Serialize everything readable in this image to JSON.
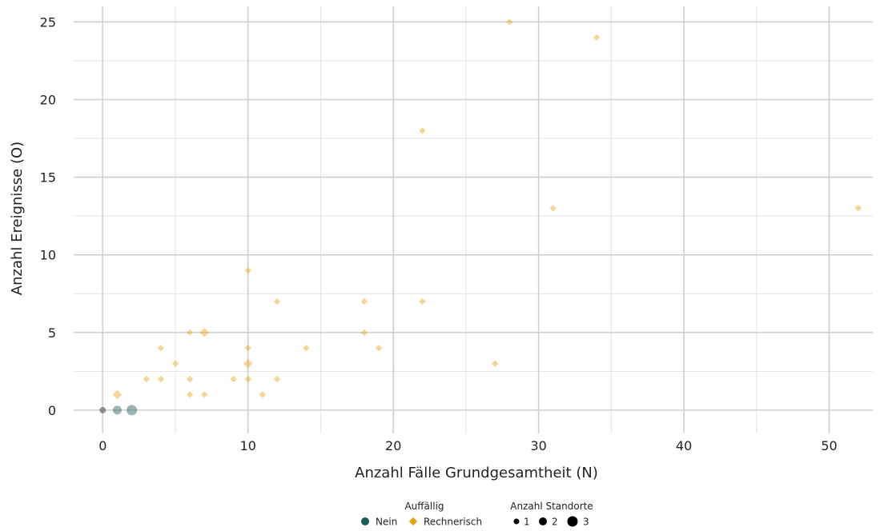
{
  "chart_data": {
    "type": "scatter",
    "title": "",
    "xlabel": "Anzahl Fälle Grundgesamtheit (N)",
    "ylabel": "Anzahl Ereignisse (O)",
    "xlim": [
      -2,
      53
    ],
    "ylim": [
      -1.5,
      26
    ],
    "xticks": [
      0,
      10,
      20,
      30,
      40,
      50
    ],
    "xtick_labels": [
      "0",
      "10",
      "20",
      "30",
      "40",
      "50"
    ],
    "x_minor_gridlines": [
      5,
      15,
      25,
      35,
      45
    ],
    "yticks": [
      0,
      5,
      10,
      15,
      20,
      25
    ],
    "ytick_labels": [
      "0",
      "5",
      "10",
      "15",
      "20",
      "25"
    ],
    "y_minor_gridlines": [
      2.5,
      7.5,
      12.5,
      17.5,
      22.5
    ],
    "grid": true,
    "legend_position": "bottom",
    "color_legend": {
      "title": "Auffällig",
      "entries": [
        {
          "label": "Nein",
          "shape": "circle",
          "color": "#1d5b5b"
        },
        {
          "label": "Rechnerisch",
          "shape": "diamond",
          "color": "#e8a317"
        }
      ]
    },
    "size_legend": {
      "title": "Anzahl Standorte",
      "entries": [
        {
          "label": "1",
          "count": 1
        },
        {
          "label": "2",
          "count": 2
        },
        {
          "label": "3",
          "count": 3
        }
      ]
    },
    "series": [
      {
        "name": "Nein",
        "shape": "circle",
        "color": "#1d5b5b",
        "opacity": 0.45,
        "points": [
          {
            "x": 1,
            "y": 0,
            "count": 2
          },
          {
            "x": 2,
            "y": 0,
            "count": 3
          }
        ]
      },
      {
        "name": "",
        "shape": "circle",
        "color": "#444444",
        "opacity": 0.55,
        "points": [
          {
            "x": 0,
            "y": 0,
            "count": 1
          }
        ]
      },
      {
        "name": "Rechnerisch",
        "shape": "diamond",
        "color": "#e8a317",
        "opacity": 0.45,
        "points": [
          {
            "x": 1,
            "y": 1,
            "count": 2
          },
          {
            "x": 3,
            "y": 2,
            "count": 1
          },
          {
            "x": 4,
            "y": 2,
            "count": 1
          },
          {
            "x": 4,
            "y": 4,
            "count": 1
          },
          {
            "x": 5,
            "y": 3,
            "count": 1
          },
          {
            "x": 6,
            "y": 1,
            "count": 1
          },
          {
            "x": 6,
            "y": 2,
            "count": 1
          },
          {
            "x": 6,
            "y": 5,
            "count": 1
          },
          {
            "x": 7,
            "y": 1,
            "count": 1
          },
          {
            "x": 7,
            "y": 5,
            "count": 2
          },
          {
            "x": 9,
            "y": 2,
            "count": 1
          },
          {
            "x": 10,
            "y": 2,
            "count": 1
          },
          {
            "x": 10,
            "y": 3,
            "count": 2
          },
          {
            "x": 10,
            "y": 4,
            "count": 1
          },
          {
            "x": 10,
            "y": 9,
            "count": 1
          },
          {
            "x": 11,
            "y": 1,
            "count": 1
          },
          {
            "x": 12,
            "y": 2,
            "count": 1
          },
          {
            "x": 12,
            "y": 7,
            "count": 1
          },
          {
            "x": 14,
            "y": 4,
            "count": 1
          },
          {
            "x": 18,
            "y": 5,
            "count": 1
          },
          {
            "x": 18,
            "y": 7,
            "count": 1
          },
          {
            "x": 19,
            "y": 4,
            "count": 1
          },
          {
            "x": 22,
            "y": 7,
            "count": 1
          },
          {
            "x": 22,
            "y": 18,
            "count": 1
          },
          {
            "x": 27,
            "y": 3,
            "count": 1
          },
          {
            "x": 28,
            "y": 25,
            "count": 1
          },
          {
            "x": 31,
            "y": 13,
            "count": 1
          },
          {
            "x": 34,
            "y": 24,
            "count": 1
          },
          {
            "x": 52,
            "y": 13,
            "count": 1
          }
        ]
      }
    ]
  }
}
